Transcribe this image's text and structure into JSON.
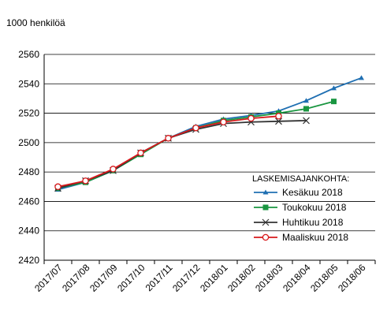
{
  "chart_data": {
    "type": "line",
    "ylabel": "1000 henkilöä",
    "categories": [
      "2017/07",
      "2017/08",
      "2017/09",
      "2017/10",
      "2017/11",
      "2017/12",
      "2018/01",
      "2018/02",
      "2018/03",
      "2018/04",
      "2018/05",
      "2018/06"
    ],
    "ylim": [
      2420,
      2560
    ],
    "yticks": [
      2420,
      2440,
      2460,
      2480,
      2500,
      2520,
      2540,
      2560
    ],
    "grid": "horizontal",
    "legend": {
      "title": "LASKEMISAJANKOHTA:",
      "placement": "lower-right"
    },
    "series": [
      {
        "name": "Kesäkuu 2018",
        "color": "#1f6fb2",
        "marker": "triangle",
        "values": [
          2468,
          2473,
          2481,
          2493,
          2503,
          2511,
          2516,
          2518.5,
          2521.5,
          2528.5,
          2537,
          2544
        ]
      },
      {
        "name": "Toukokuu 2018",
        "color": "#1a9641",
        "marker": "square",
        "values": [
          2469,
          2473,
          2481,
          2492,
          2503,
          2510,
          2515,
          2517.5,
          2520,
          2523,
          2528,
          null
        ]
      },
      {
        "name": "Huhtikuu 2018",
        "color": "#333333",
        "marker": "x",
        "values": [
          2469,
          2474,
          2481,
          2493,
          2503,
          2509,
          2513,
          2514,
          2514.5,
          2515,
          null,
          null
        ]
      },
      {
        "name": "Maaliskuu 2018",
        "color": "#d7191c",
        "marker": "circle",
        "values": [
          2470,
          2474,
          2482,
          2493,
          2503,
          2510,
          2514,
          2516.5,
          2518,
          null,
          null,
          null
        ]
      }
    ]
  }
}
